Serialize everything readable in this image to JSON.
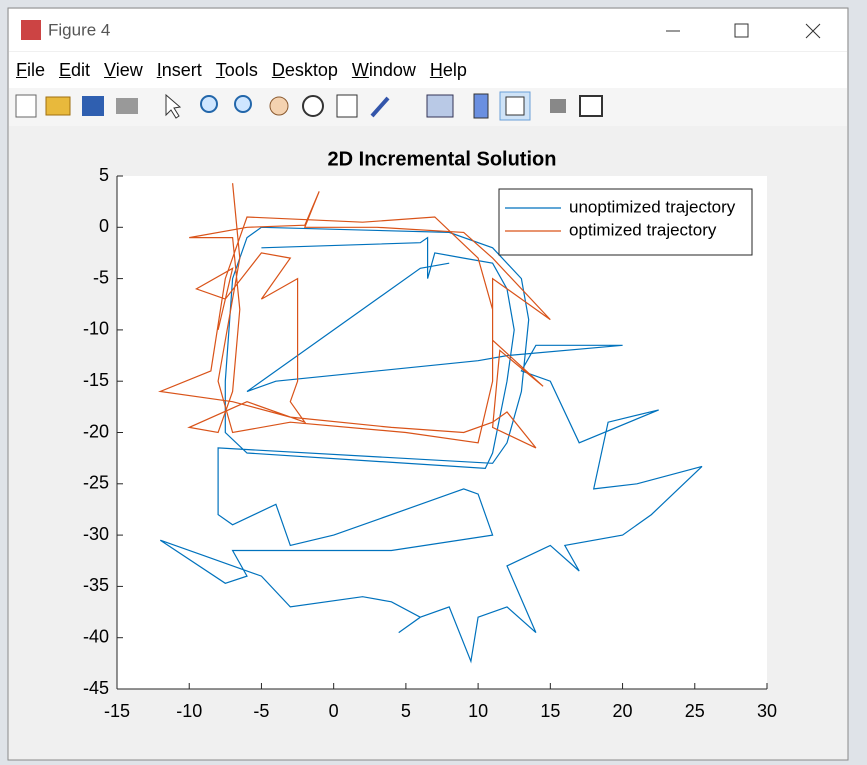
{
  "window": {
    "title": "Figure 4",
    "menu": [
      "File",
      "Edit",
      "View",
      "Insert",
      "Tools",
      "Desktop",
      "Window",
      "Help"
    ]
  },
  "chart_data": {
    "type": "line",
    "title": "2D Incremental Solution",
    "xlim": [
      -15,
      30
    ],
    "xticks": [
      -15,
      -10,
      -5,
      0,
      5,
      10,
      15,
      20,
      25,
      30
    ],
    "ylim": [
      -45,
      5
    ],
    "yticks": [
      -45,
      -40,
      -35,
      -30,
      -25,
      -20,
      -15,
      -10,
      -5,
      0,
      5
    ],
    "legend": "northeast",
    "series": [
      {
        "name": "unoptimized trajectory",
        "color": "#0072bd",
        "x": [
          -5,
          6,
          6.5,
          6.5,
          7,
          9,
          11,
          12,
          12.5,
          12,
          11,
          10.5,
          -6,
          -7.5,
          -7.5,
          -7,
          -6,
          -5,
          8,
          11,
          13,
          13.5,
          13,
          12,
          11,
          -8,
          -8,
          -8,
          -7,
          -4,
          -3,
          0,
          8,
          9,
          10,
          11,
          4,
          -7,
          -6,
          -7.5,
          -12,
          -9,
          -5,
          -3,
          2,
          4,
          6,
          4.5,
          6,
          8,
          9.5,
          10,
          12,
          14,
          12,
          15,
          17,
          16,
          20,
          22,
          25.5,
          21,
          18,
          19,
          22.5,
          17,
          15,
          13,
          14,
          20,
          12,
          10,
          -4,
          -6,
          6,
          8
        ],
        "values": [
          -2,
          -1.5,
          -1,
          -5,
          -2.5,
          -3,
          -3.5,
          -6,
          -10,
          -15,
          -22,
          -23.5,
          -22,
          -20,
          -15,
          -5,
          -1,
          0,
          -0.5,
          -2,
          -5,
          -9,
          -16,
          -21,
          -23,
          -21.5,
          -25,
          -28,
          -29,
          -27,
          -31,
          -30,
          -26,
          -25.5,
          -26,
          -30,
          -31.5,
          -31.5,
          -34,
          -34.7,
          -30.5,
          -32,
          -34,
          -37,
          -36,
          -36.5,
          -38,
          -39.5,
          -38,
          -37,
          -42.3,
          -38,
          -37,
          -39.5,
          -33,
          -31,
          -33.5,
          -31,
          -30,
          -28,
          -23.3,
          -25,
          -25.5,
          -19,
          -17.8,
          -21,
          -15,
          -14,
          -11.5,
          -11.5,
          -12.5,
          -13,
          -15,
          -16,
          -4,
          -3.5
        ]
      },
      {
        "name": "optimized trajectory",
        "color": "#d95319",
        "x": [
          -7,
          -6.5,
          -8,
          -7,
          -3,
          5,
          10,
          11,
          11,
          10,
          7,
          2,
          -6,
          -7.5,
          -8.5,
          -12,
          -7,
          -3,
          4,
          9,
          11,
          12,
          14,
          11,
          11.5,
          14.5,
          11,
          11,
          15,
          11,
          9,
          3,
          -2,
          -1,
          -2,
          -6,
          -10,
          -7,
          -6.5,
          -7,
          -8,
          -10,
          -6,
          -2,
          -3,
          -2.5,
          -2.5,
          -5,
          -3,
          -5,
          -7.5,
          -9.5,
          -7,
          -8
        ],
        "values": [
          4.3,
          -3,
          -15,
          -20,
          -19,
          -20,
          -21,
          -15,
          -8,
          -3,
          1,
          0.5,
          1,
          -5,
          -14,
          -16,
          -17,
          -18.5,
          -19.5,
          -20,
          -19,
          -18,
          -21.5,
          -19.5,
          -12,
          -15.5,
          -11,
          -5,
          -9,
          -3,
          -0.5,
          0,
          0,
          3.5,
          0.2,
          0,
          -1,
          -1,
          -8,
          -16,
          -20,
          -19.5,
          -17,
          -19,
          -17,
          -15,
          -5,
          -7,
          -3,
          -2.5,
          -7,
          -6,
          -4,
          -10
        ]
      }
    ]
  }
}
